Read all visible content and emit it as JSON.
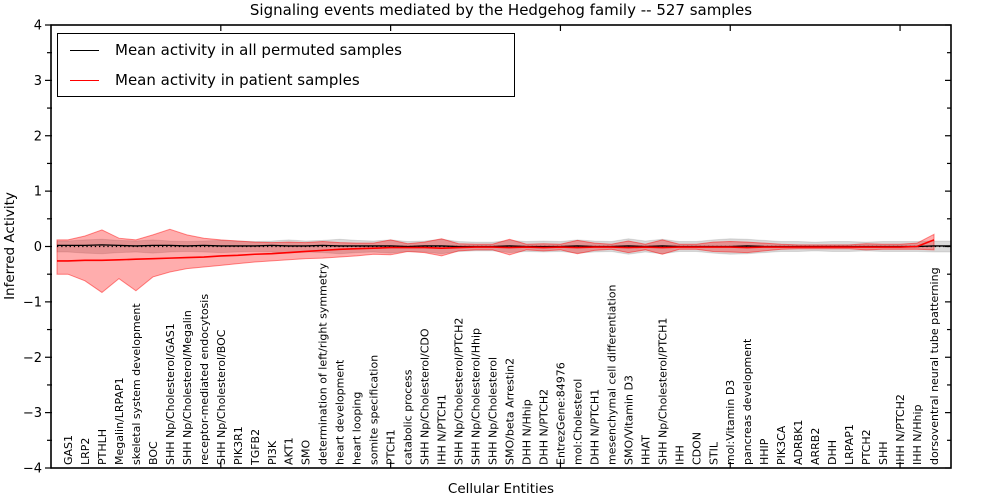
{
  "chart_data": {
    "type": "line",
    "title": "Signaling events mediated by the Hedgehog family -- 527 samples",
    "xlabel": "Cellular Entities",
    "ylabel": "Inferred Activity",
    "ylim": [
      -4,
      4
    ],
    "yticks": [
      -4,
      -3,
      -2,
      -1,
      0,
      1,
      2,
      3,
      4
    ],
    "ytick_labels": [
      "−4",
      "−3",
      "−2",
      "−1",
      "0",
      "1",
      "2",
      "3",
      "4"
    ],
    "minor_ytick_step": 0.5,
    "top_xtick_positions": [
      10,
      20,
      30,
      40,
      50
    ],
    "grid": false,
    "legend_position": "upper left",
    "zero_line": {
      "show": true,
      "color": "#000000",
      "style": "dotted"
    },
    "categories": [
      "GAS1",
      "LRP2",
      "PTHLH",
      "Megalin/LRPAP1",
      "skeletal system development",
      "BOC",
      "SHH Np/Cholesterol/GAS1",
      "SHH Np/Cholesterol/Megalin",
      "receptor-mediated endocytosis",
      "SHH Np/Cholesterol/BOC",
      "PIK3R1",
      "TGFB2",
      "PI3K",
      "AKT1",
      "SMO",
      "determination of left/right symmetry",
      "heart development",
      "heart looping",
      "somite specification",
      "PTCH1",
      "catabolic process",
      "SHH Np/Cholesterol/CDO",
      "IHH N/PTCH1",
      "SHH Np/Cholesterol/PTCH2",
      "SHH Np/Cholesterol/Hhip",
      "SHH Np/Cholesterol",
      "SMO/beta Arrestin2",
      "DHH N/Hhip",
      "DHH N/PTCH2",
      "EntrezGene:84976",
      "mol:Cholesterol",
      "DHH N/PTCH1",
      "mesenchymal cell differentiation",
      "SMO/Vitamin D3",
      "HHAT",
      "SHH Np/Cholesterol/PTCH1",
      "IHH",
      "CDON",
      "STIL",
      "mol:Vitamin D3",
      "pancreas development",
      "HHIP",
      "PIK3CA",
      "ADRBK1",
      "ARRB2",
      "DHH",
      "LRPAP1",
      "PTCH2",
      "SHH",
      "IHH N/PTCH2",
      "IHH N/Hhip",
      "dorsoventral neural tube patterning"
    ],
    "series": [
      {
        "name": "Mean activity in all permuted samples",
        "color": "#000000",
        "line_width": 1.3,
        "values": [
          0.02,
          0.02,
          0.03,
          0.02,
          0.01,
          0.02,
          0.02,
          0.01,
          0.02,
          0.01,
          0.01,
          0.01,
          0.02,
          0.01,
          0.01,
          0.02,
          0.01,
          0.01,
          0.01,
          0.01,
          0.0,
          0.01,
          0.01,
          0.0,
          0.0,
          0.0,
          0.01,
          0.0,
          0.0,
          0.0,
          0.01,
          0.0,
          0.0,
          0.01,
          0.0,
          0.01,
          0.0,
          0.0,
          0.0,
          0.0,
          0.01,
          0.0,
          0.0,
          0.0,
          0.0,
          0.0,
          0.0,
          0.0,
          0.0,
          0.0,
          0.0,
          0.01
        ]
      },
      {
        "name": "Mean activity in patient samples",
        "color": "#ff0000",
        "line_width": 1.6,
        "values": [
          -0.26,
          -0.25,
          -0.25,
          -0.24,
          -0.23,
          -0.22,
          -0.21,
          -0.2,
          -0.19,
          -0.17,
          -0.16,
          -0.14,
          -0.13,
          -0.11,
          -0.09,
          -0.07,
          -0.05,
          -0.04,
          -0.03,
          -0.02,
          -0.02,
          -0.02,
          -0.03,
          -0.02,
          -0.01,
          -0.01,
          -0.02,
          -0.01,
          -0.02,
          -0.01,
          -0.02,
          -0.01,
          -0.01,
          -0.02,
          -0.01,
          -0.02,
          -0.01,
          -0.01,
          -0.01,
          -0.01,
          -0.02,
          -0.01,
          -0.01,
          -0.01,
          -0.01,
          -0.01,
          -0.01,
          -0.01,
          -0.01,
          -0.01,
          0.0,
          0.12
        ]
      }
    ],
    "bands": [
      {
        "name": "permuted samples range",
        "color": "#000000",
        "fill_opacity": 0.15,
        "edge_opacity": 0.1,
        "upper": [
          0.1,
          0.12,
          0.13,
          0.11,
          0.1,
          0.12,
          0.1,
          0.09,
          0.1,
          0.11,
          0.1,
          0.09,
          0.1,
          0.12,
          0.1,
          0.11,
          0.13,
          0.11,
          0.1,
          0.12,
          0.09,
          0.1,
          0.13,
          0.09,
          0.08,
          0.08,
          0.11,
          0.09,
          0.1,
          0.09,
          0.12,
          0.1,
          0.09,
          0.14,
          0.1,
          0.13,
          0.09,
          0.09,
          0.12,
          0.14,
          0.13,
          0.11,
          0.09,
          0.09,
          0.08,
          0.09,
          0.09,
          0.08,
          0.09,
          0.09,
          0.09,
          0.1
        ],
        "lower": [
          -0.1,
          -0.12,
          -0.13,
          -0.11,
          -0.1,
          -0.12,
          -0.1,
          -0.09,
          -0.1,
          -0.11,
          -0.1,
          -0.09,
          -0.1,
          -0.12,
          -0.1,
          -0.11,
          -0.13,
          -0.11,
          -0.1,
          -0.12,
          -0.09,
          -0.1,
          -0.13,
          -0.09,
          -0.08,
          -0.08,
          -0.11,
          -0.09,
          -0.1,
          -0.09,
          -0.12,
          -0.1,
          -0.09,
          -0.14,
          -0.1,
          -0.13,
          -0.09,
          -0.09,
          -0.12,
          -0.14,
          -0.13,
          -0.11,
          -0.09,
          -0.09,
          -0.08,
          -0.09,
          -0.09,
          -0.08,
          -0.09,
          -0.09,
          -0.09,
          -0.1
        ]
      },
      {
        "name": "patient samples range",
        "color": "#ff0000",
        "fill_opacity": 0.32,
        "edge_opacity": 0.45,
        "upper": [
          0.12,
          0.19,
          0.3,
          0.15,
          0.12,
          0.21,
          0.31,
          0.21,
          0.15,
          0.12,
          0.1,
          0.08,
          0.07,
          0.08,
          0.07,
          0.09,
          0.07,
          0.06,
          0.06,
          0.12,
          0.05,
          0.08,
          0.14,
          0.05,
          0.04,
          0.04,
          0.13,
          0.04,
          0.05,
          0.04,
          0.11,
          0.06,
          0.04,
          0.1,
          0.04,
          0.12,
          0.04,
          0.04,
          0.08,
          0.09,
          0.08,
          0.06,
          0.04,
          0.03,
          0.03,
          0.03,
          0.03,
          0.05,
          0.04,
          0.04,
          0.06,
          0.22
        ],
        "lower": [
          -0.5,
          -0.62,
          -0.83,
          -0.58,
          -0.8,
          -0.55,
          -0.46,
          -0.4,
          -0.37,
          -0.34,
          -0.31,
          -0.28,
          -0.26,
          -0.24,
          -0.22,
          -0.21,
          -0.19,
          -0.17,
          -0.14,
          -0.15,
          -0.09,
          -0.11,
          -0.17,
          -0.08,
          -0.06,
          -0.06,
          -0.15,
          -0.06,
          -0.08,
          -0.06,
          -0.13,
          -0.07,
          -0.05,
          -0.11,
          -0.06,
          -0.14,
          -0.05,
          -0.05,
          -0.09,
          -0.1,
          -0.11,
          -0.08,
          -0.05,
          -0.04,
          -0.04,
          -0.04,
          -0.04,
          -0.06,
          -0.05,
          -0.05,
          -0.05,
          -0.06
        ]
      }
    ]
  }
}
